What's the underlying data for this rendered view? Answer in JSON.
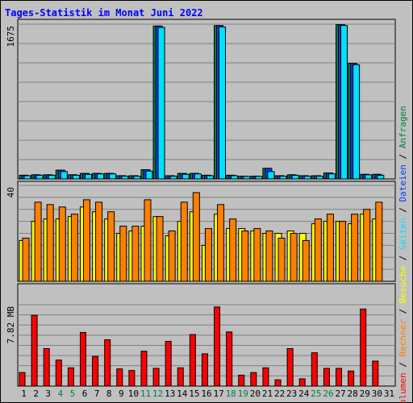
{
  "title": "Tages-Statistik im Monat Juni 2022",
  "colors": {
    "page_bg": "#c0c0c0",
    "frame": "#000000",
    "plot_bg": "#c0c0c0",
    "grid": "#7f7f7f",
    "title": "#0000ff",
    "anfragen": "#008040",
    "dateien": "#0040ff",
    "seiten": "#00e0ff",
    "besuche": "#ffff00",
    "rechner": "#ff8000",
    "volumen": "#ff0000",
    "weekend_label": "#008040"
  },
  "chart_data": [
    {
      "type": "bar",
      "panel": "hits",
      "ymax_label": "1675",
      "ylim": [
        0,
        1675
      ],
      "categories": [
        "1",
        "2",
        "3",
        "4",
        "5",
        "6",
        "7",
        "8",
        "9",
        "10",
        "11",
        "12",
        "13",
        "14",
        "15",
        "16",
        "17",
        "18",
        "19",
        "20",
        "21",
        "22",
        "23",
        "24",
        "25",
        "26",
        "27",
        "28",
        "29",
        "30",
        "31"
      ],
      "weekend_days": [
        "4",
        "5",
        "11",
        "12",
        "18",
        "19",
        "25",
        "26"
      ],
      "legend": [
        "Anfragen",
        "Dateien",
        "Seiten"
      ],
      "series": [
        {
          "name": "Anfragen",
          "color": "#008040",
          "values": [
            40,
            45,
            45,
            95,
            45,
            60,
            60,
            60,
            35,
            35,
            100,
            1655,
            35,
            60,
            60,
            40,
            1660,
            40,
            30,
            30,
            115,
            35,
            45,
            35,
            35,
            65,
            1670,
            1250,
            50,
            50,
            null
          ]
        },
        {
          "name": "Dateien",
          "color": "#0040ff",
          "values": [
            40,
            45,
            45,
            95,
            45,
            60,
            60,
            60,
            35,
            35,
            100,
            1655,
            35,
            60,
            60,
            40,
            1660,
            40,
            30,
            30,
            115,
            35,
            45,
            35,
            35,
            65,
            1670,
            1250,
            50,
            50,
            null
          ]
        },
        {
          "name": "Seiten",
          "color": "#00e0ff",
          "values": [
            35,
            40,
            40,
            80,
            40,
            50,
            55,
            55,
            30,
            30,
            85,
            1640,
            30,
            50,
            55,
            35,
            1645,
            35,
            28,
            28,
            80,
            30,
            40,
            30,
            30,
            55,
            1660,
            1235,
            45,
            40,
            null
          ]
        }
      ]
    },
    {
      "type": "bar",
      "panel": "visits",
      "ymax_label": "40",
      "ylim": [
        0,
        40
      ],
      "categories": [
        "1",
        "2",
        "3",
        "4",
        "5",
        "6",
        "7",
        "8",
        "9",
        "10",
        "11",
        "12",
        "13",
        "14",
        "15",
        "16",
        "17",
        "18",
        "19",
        "20",
        "21",
        "22",
        "23",
        "24",
        "25",
        "26",
        "27",
        "28",
        "29",
        "30",
        "31"
      ],
      "legend": [
        "Besuche",
        "Rechner"
      ],
      "series": [
        {
          "name": "Besuche",
          "color": "#ffff00",
          "values": [
            17,
            25,
            26,
            26,
            27,
            31,
            29,
            26,
            20,
            21,
            23,
            27,
            19,
            25,
            29,
            15,
            28,
            22,
            22,
            21,
            20,
            20,
            21,
            20,
            24,
            25,
            25,
            24,
            28,
            26,
            null
          ]
        },
        {
          "name": "Rechner",
          "color": "#ff8000",
          "values": [
            18,
            33,
            32,
            31,
            28,
            34,
            33,
            29,
            23,
            23,
            34,
            27,
            21,
            33,
            37,
            22,
            32,
            26,
            21,
            22,
            21,
            18,
            20,
            17,
            26,
            28,
            25,
            28,
            30,
            33,
            null
          ]
        }
      ]
    },
    {
      "type": "bar",
      "panel": "volume",
      "ymax_label": "7.82 MB",
      "ylim": [
        0,
        7.82
      ],
      "categories": [
        "1",
        "2",
        "3",
        "4",
        "5",
        "6",
        "7",
        "8",
        "9",
        "10",
        "11",
        "12",
        "13",
        "14",
        "15",
        "16",
        "17",
        "18",
        "19",
        "20",
        "21",
        "22",
        "23",
        "24",
        "25",
        "26",
        "27",
        "28",
        "29",
        "30",
        "31"
      ],
      "legend": [
        "Volumen"
      ],
      "series": [
        {
          "name": "Volumen",
          "color": "#ff0000",
          "values": [
            1.3,
            6.8,
            3.6,
            2.5,
            1.75,
            5.15,
            2.85,
            4.45,
            1.65,
            1.5,
            3.35,
            1.7,
            4.3,
            1.75,
            4.95,
            3.1,
            7.6,
            5.2,
            1.05,
            1.3,
            1.75,
            0.6,
            3.6,
            0.7,
            3.2,
            1.7,
            1.7,
            1.45,
            7.4,
            2.4,
            null
          ]
        }
      ]
    }
  ]
}
